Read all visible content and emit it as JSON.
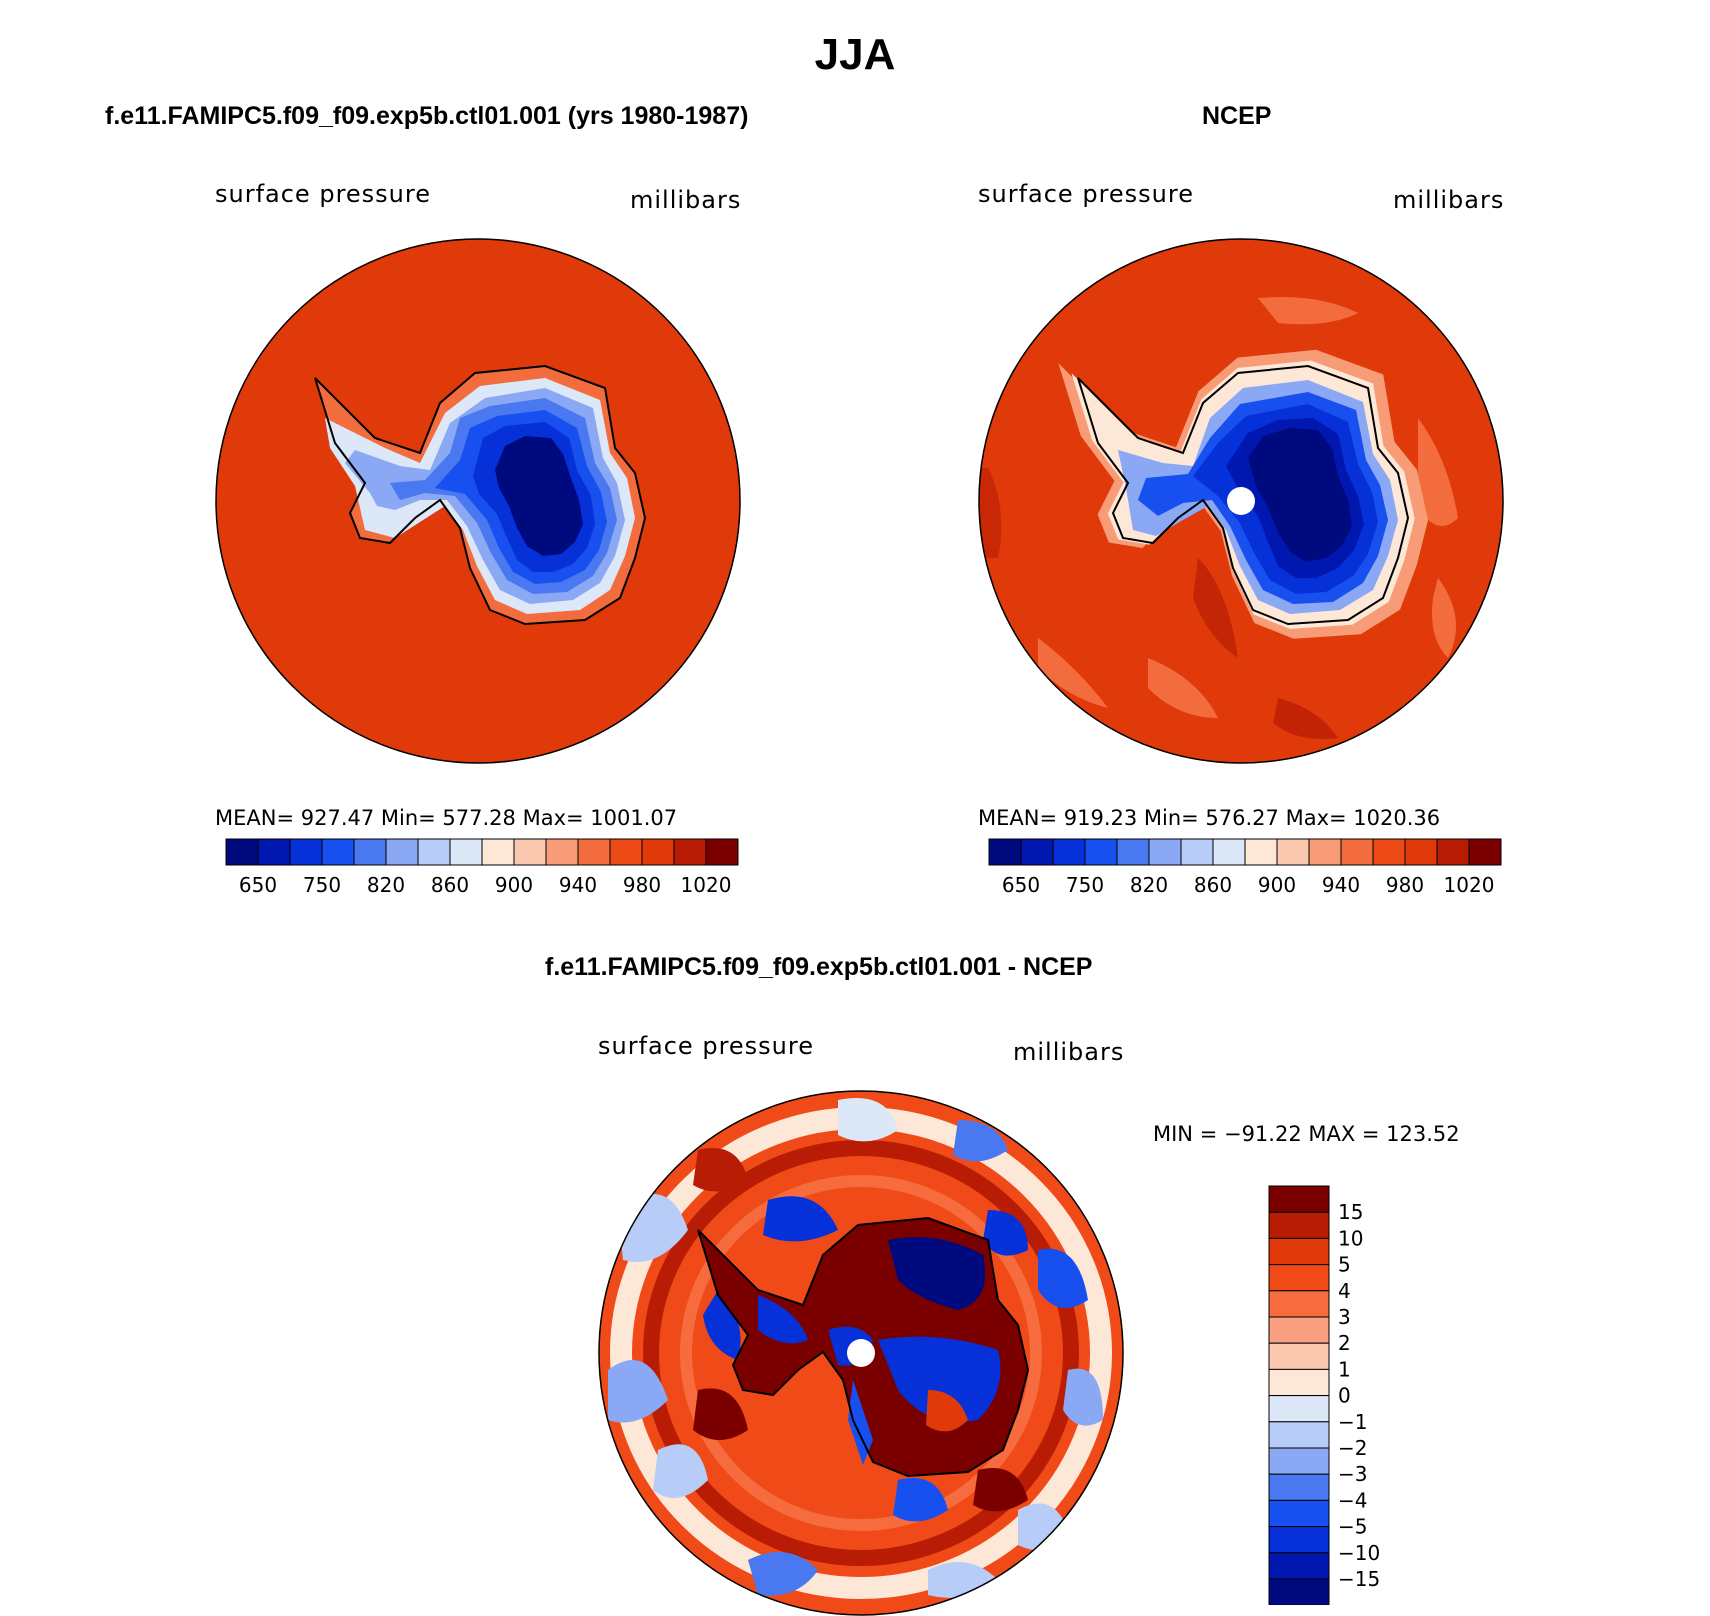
{
  "figure": {
    "season_title": "JJA"
  },
  "panel_model": {
    "title": "f.e11.FAMIPC5.f09_f09.exp5b.ctl01.001 (yrs 1980-1987)",
    "variable": "surface pressure",
    "units": "millibars",
    "stats": "MEAN= 927.47   Min= 577.28   Max= 1001.07",
    "background_color": "#e03a0a"
  },
  "panel_obs": {
    "title": "NCEP",
    "variable": "surface pressure",
    "units": "millibars",
    "stats": "MEAN= 919.23   Min= 576.27   Max= 1020.36",
    "background_color": "#e03a0a"
  },
  "panel_diff": {
    "title": "f.e11.FAMIPC5.f09_f09.exp5b.ctl01.001 - NCEP",
    "variable": "surface pressure",
    "units": "millibars",
    "stats": "MIN = −91.22 MAX = 123.52"
  },
  "colorbar_abs": {
    "colors": [
      "#000a7f",
      "#0018b0",
      "#0630d8",
      "#1850f0",
      "#4a78f0",
      "#8aa8f4",
      "#b8ccf8",
      "#dce8f8",
      "#fde8d8",
      "#fbc8b0",
      "#f89c78",
      "#f36c3e",
      "#ec4a14",
      "#e03a0a",
      "#b81c04",
      "#7a0000"
    ],
    "labels": [
      "650",
      "750",
      "820",
      "860",
      "900",
      "940",
      "980",
      "1020"
    ]
  },
  "colorbar_diff": {
    "colors": [
      "#7a0000",
      "#b81c04",
      "#e03a0a",
      "#f04a18",
      "#f66c3e",
      "#f9a080",
      "#fcc8b0",
      "#fde8d8",
      "#dce8f8",
      "#b8ccf8",
      "#8aa8f4",
      "#4a78f0",
      "#1850f0",
      "#0630d8",
      "#0018b0",
      "#000a7f"
    ],
    "labels": [
      "15",
      "10",
      "5",
      "4",
      "3",
      "2",
      "1",
      "0",
      "−1",
      "−2",
      "−3",
      "−4",
      "−5",
      "−10",
      "−15"
    ]
  }
}
